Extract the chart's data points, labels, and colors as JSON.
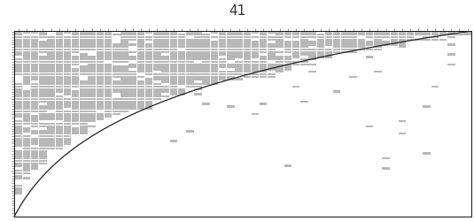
{
  "n_species": 75,
  "n_sites": 56,
  "background_color": "#ffffff",
  "matrix_color": "#b8b8b8",
  "curve_color": "#222222",
  "border_color": "#111111",
  "tick_color": "#555555",
  "page_number": "41",
  "title_fontsize": 11,
  "seed": 7
}
